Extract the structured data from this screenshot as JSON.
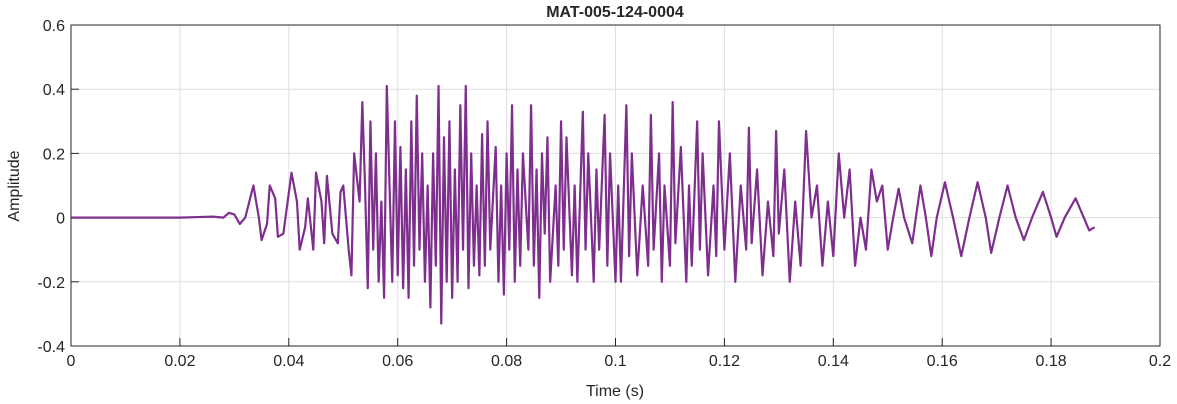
{
  "chart_data": {
    "type": "line",
    "title": "MAT-005-124-0004",
    "xlabel": "Time (s)",
    "ylabel": "Amplitude",
    "color": "#7e2f8e",
    "grid": true,
    "xlim": [
      0,
      0.2
    ],
    "xticks": [
      0,
      0.02,
      0.04,
      0.06,
      0.08,
      0.1,
      0.12,
      0.14,
      0.16,
      0.18,
      0.2
    ],
    "ylim": [
      -0.4,
      0.6
    ],
    "yticks": [
      -0.4,
      -0.2,
      0,
      0.2,
      0.4,
      0.6
    ],
    "x": [
      0,
      0.01,
      0.02,
      0.024,
      0.026,
      0.028,
      0.029,
      0.03,
      0.031,
      0.032,
      0.0335,
      0.0345,
      0.035,
      0.036,
      0.0365,
      0.0375,
      0.038,
      0.039,
      0.0405,
      0.0415,
      0.042,
      0.043,
      0.0435,
      0.0445,
      0.045,
      0.046,
      0.0465,
      0.047,
      0.048,
      0.049,
      0.0495,
      0.05,
      0.051,
      0.0515,
      0.052,
      0.053,
      0.0535,
      0.054,
      0.0545,
      0.055,
      0.0555,
      0.056,
      0.0565,
      0.057,
      0.0575,
      0.058,
      0.0585,
      0.059,
      0.0595,
      0.06,
      0.0605,
      0.061,
      0.0615,
      0.062,
      0.0625,
      0.063,
      0.0635,
      0.064,
      0.0645,
      0.065,
      0.0655,
      0.066,
      0.0665,
      0.067,
      0.0675,
      0.068,
      0.0685,
      0.069,
      0.0695,
      0.07,
      0.0705,
      0.071,
      0.0715,
      0.072,
      0.0725,
      0.073,
      0.0735,
      0.074,
      0.0745,
      0.075,
      0.0755,
      0.076,
      0.0765,
      0.077,
      0.078,
      0.0785,
      0.079,
      0.0795,
      0.08,
      0.0805,
      0.081,
      0.0815,
      0.082,
      0.0825,
      0.083,
      0.084,
      0.0845,
      0.085,
      0.0855,
      0.086,
      0.0865,
      0.087,
      0.0875,
      0.088,
      0.089,
      0.0895,
      0.09,
      0.0905,
      0.091,
      0.092,
      0.0925,
      0.093,
      0.094,
      0.0945,
      0.095,
      0.096,
      0.0965,
      0.097,
      0.098,
      0.0985,
      0.099,
      0.1,
      0.1005,
      0.101,
      0.102,
      0.1025,
      0.103,
      0.104,
      0.105,
      0.106,
      0.1065,
      0.107,
      0.108,
      0.1085,
      0.109,
      0.11,
      0.1105,
      0.111,
      0.112,
      0.113,
      0.1135,
      0.114,
      0.115,
      0.1155,
      0.116,
      0.117,
      0.118,
      0.1185,
      0.119,
      0.12,
      0.121,
      0.122,
      0.123,
      0.124,
      0.1245,
      0.125,
      0.126,
      0.127,
      0.128,
      0.129,
      0.1295,
      0.13,
      0.131,
      0.132,
      0.133,
      0.134,
      0.135,
      0.136,
      0.137,
      0.138,
      0.139,
      0.14,
      0.141,
      0.142,
      0.143,
      0.144,
      0.145,
      0.146,
      0.147,
      0.148,
      0.149,
      0.15,
      0.151,
      0.152,
      0.153,
      0.1545,
      0.156,
      0.157,
      0.158,
      0.159,
      0.1605,
      0.162,
      0.1635,
      0.165,
      0.1665,
      0.168,
      0.169,
      0.1705,
      0.172,
      0.1735,
      0.175,
      0.1765,
      0.1785,
      0.18,
      0.181,
      0.1825,
      0.1845,
      0.186,
      0.187,
      0.188
    ],
    "values": [
      0,
      0,
      0,
      0.002,
      0.003,
      0,
      0.015,
      0.01,
      -0.02,
      0,
      0.1,
      0,
      -0.07,
      -0.02,
      0.1,
      0.06,
      -0.06,
      -0.05,
      0.14,
      0.05,
      -0.1,
      -0.03,
      0.06,
      -0.1,
      0.14,
      0.05,
      -0.08,
      0.13,
      -0.05,
      -0.08,
      0.08,
      0.1,
      -0.1,
      -0.18,
      0.2,
      0.05,
      0.36,
      0.1,
      -0.22,
      0.3,
      -0.1,
      0.2,
      -0.2,
      0.05,
      -0.25,
      0.41,
      0.1,
      -0.2,
      0.3,
      -0.18,
      0.22,
      -0.22,
      0.15,
      -0.25,
      0.3,
      -0.15,
      0.38,
      -0.1,
      0.2,
      -0.2,
      0.1,
      -0.28,
      0.2,
      -0.15,
      0.41,
      -0.33,
      0.25,
      -0.2,
      0.3,
      -0.25,
      0.15,
      -0.2,
      0.35,
      -0.1,
      0.41,
      -0.22,
      0.2,
      -0.15,
      0.1,
      -0.18,
      0.26,
      -0.15,
      0.3,
      -0.1,
      0.22,
      -0.2,
      0.1,
      -0.24,
      0.2,
      -0.1,
      0.35,
      -0.2,
      0.15,
      -0.15,
      0.2,
      -0.1,
      0.35,
      -0.15,
      0.15,
      -0.25,
      0.2,
      -0.05,
      0.25,
      -0.2,
      0.1,
      -0.15,
      0.3,
      -0.1,
      0.25,
      -0.18,
      0.1,
      -0.2,
      0.33,
      -0.1,
      0.2,
      -0.2,
      0.15,
      -0.1,
      0.32,
      -0.15,
      0.2,
      -0.2,
      0.1,
      -0.2,
      0.35,
      -0.12,
      0.2,
      -0.18,
      0.1,
      -0.15,
      0.32,
      -0.1,
      0.2,
      -0.2,
      0.1,
      -0.15,
      0.36,
      -0.08,
      0.22,
      -0.2,
      0.1,
      -0.15,
      0.3,
      -0.1,
      0.2,
      -0.18,
      0.1,
      -0.12,
      0.3,
      -0.1,
      0.2,
      -0.2,
      0.1,
      -0.1,
      0.28,
      -0.08,
      0.15,
      -0.18,
      0.05,
      -0.12,
      0.27,
      -0.05,
      0.15,
      -0.2,
      0.05,
      -0.15,
      0.27,
      0,
      0.1,
      -0.15,
      0.05,
      -0.12,
      0.2,
      0,
      0.15,
      -0.15,
      0,
      -0.1,
      0.15,
      0.05,
      0.1,
      -0.1,
      0,
      0.09,
      0,
      -0.08,
      0.1,
      0,
      -0.12,
      0,
      0.11,
      0,
      -0.12,
      0,
      0.11,
      0,
      -0.11,
      0,
      0.1,
      0,
      -0.07,
      0,
      0.08,
      0,
      -0.06,
      0,
      0.06,
      0,
      -0.04,
      -0.03
    ]
  }
}
